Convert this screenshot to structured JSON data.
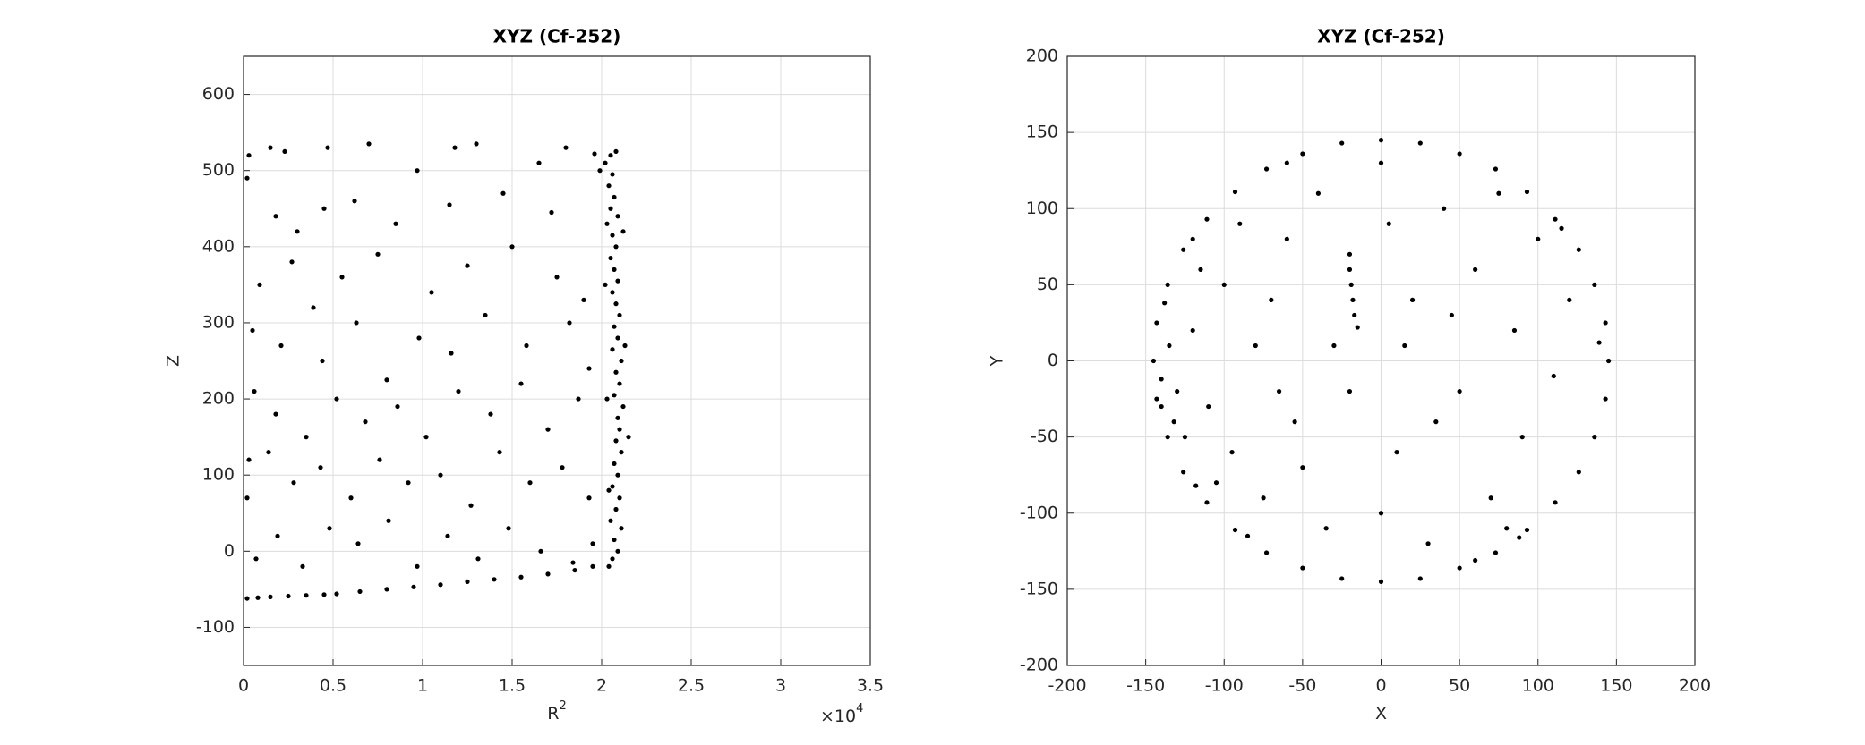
{
  "chart_data": [
    {
      "type": "scatter",
      "title": "XYZ (Cf-252)",
      "xlabel": "R",
      "xlabel_superscript": "2",
      "ylabel": "Z",
      "x_multiplier": "×10",
      "x_multiplier_exponent": "4",
      "color": "#000000",
      "grid": true,
      "xlim": [
        0,
        35000
      ],
      "ylim": [
        -150,
        650
      ],
      "xticks": [
        0,
        {
          "value": 5000,
          "label": "0.5"
        },
        {
          "value": 10000,
          "label": "1"
        },
        {
          "value": 15000,
          "label": "1.5"
        },
        {
          "value": 20000,
          "label": "2"
        },
        {
          "value": 25000,
          "label": "2.5"
        },
        {
          "value": 30000,
          "label": "3"
        },
        {
          "value": 35000,
          "label": "3.5"
        }
      ],
      "yticks": [
        -100,
        0,
        100,
        200,
        300,
        400,
        500,
        600
      ],
      "x": [
        20500,
        20800,
        19600,
        20200,
        20600,
        20400,
        20700,
        20500,
        20900,
        20300,
        20600,
        20800,
        20500,
        20700,
        20900,
        20600,
        20800,
        21000,
        20700,
        20900,
        20600,
        21100,
        20800,
        21000,
        20700,
        21200,
        20900,
        21000,
        20800,
        21100,
        20700,
        20900,
        20600,
        21000,
        20800,
        20500,
        21100,
        20700,
        20900,
        20600,
        20400,
        21500,
        21300,
        19900,
        20200,
        20300,
        20400,
        21200,
        200,
        800,
        1500,
        2500,
        3500,
        4500,
        5200,
        6500,
        8000,
        9500,
        11000,
        12500,
        14000,
        15500,
        17000,
        18500,
        19500,
        300,
        200,
        1500,
        2300,
        4700,
        7000,
        9700,
        11800,
        13000,
        16500,
        18000,
        1800,
        3000,
        4500,
        6200,
        8500,
        11500,
        14500,
        17200,
        900,
        2700,
        3900,
        5500,
        7500,
        10500,
        12500,
        15000,
        17500,
        19000,
        500,
        2100,
        4400,
        6300,
        8000,
        9800,
        11600,
        13500,
        15800,
        18200,
        19300,
        600,
        1800,
        3500,
        5200,
        6800,
        8600,
        10200,
        12000,
        13800,
        15500,
        17000,
        18700,
        300,
        1400,
        2800,
        4300,
        6000,
        7600,
        9200,
        11000,
        12700,
        14300,
        16000,
        17800,
        19300,
        200,
        700,
        1900,
        3300,
        4800,
        6400,
        8100,
        9700,
        11400,
        13100,
        14800,
        16600,
        18400,
        19500
      ],
      "values": [
        520,
        525,
        522,
        510,
        495,
        480,
        465,
        450,
        440,
        430,
        415,
        400,
        385,
        370,
        355,
        340,
        325,
        310,
        295,
        280,
        265,
        250,
        235,
        220,
        205,
        190,
        175,
        160,
        145,
        130,
        115,
        100,
        85,
        70,
        55,
        40,
        30,
        15,
        0,
        -10,
        -20,
        150,
        270,
        500,
        350,
        200,
        80,
        420,
        -62,
        -61,
        -60,
        -59,
        -58,
        -57,
        -56,
        -53,
        -50,
        -47,
        -44,
        -40,
        -37,
        -34,
        -30,
        -25,
        -20,
        520,
        490,
        530,
        525,
        530,
        535,
        500,
        530,
        535,
        510,
        530,
        440,
        420,
        450,
        460,
        430,
        455,
        470,
        445,
        350,
        380,
        320,
        360,
        390,
        340,
        375,
        400,
        360,
        330,
        290,
        270,
        250,
        300,
        225,
        280,
        260,
        310,
        270,
        300,
        240,
        210,
        180,
        150,
        200,
        170,
        190,
        150,
        210,
        180,
        220,
        160,
        200,
        120,
        130,
        90,
        110,
        70,
        120,
        90,
        100,
        60,
        130,
        90,
        110,
        70,
        70,
        -10,
        20,
        -20,
        30,
        10,
        40,
        -20,
        20,
        -10,
        30,
        0,
        -15,
        10
      ]
    },
    {
      "type": "scatter",
      "title": "XYZ (Cf-252)",
      "xlabel": "X",
      "ylabel": "Y",
      "color": "#000000",
      "grid": true,
      "xlim": [
        -200,
        200
      ],
      "ylim": [
        -200,
        200
      ],
      "xticks": [
        -200,
        -150,
        -100,
        -50,
        0,
        50,
        100,
        150,
        200
      ],
      "yticks": [
        -200,
        -150,
        -100,
        -50,
        0,
        50,
        100,
        150,
        200
      ],
      "x": [
        145,
        143,
        136,
        126,
        111,
        93,
        73,
        50,
        25,
        0,
        -25,
        -50,
        -73,
        -93,
        -111,
        -126,
        -136,
        -143,
        -145,
        -143,
        -136,
        -126,
        -111,
        -93,
        -73,
        -50,
        -25,
        0,
        25,
        50,
        73,
        93,
        111,
        126,
        136,
        143,
        139,
        -140,
        -138,
        -132,
        -118,
        -120,
        -85,
        88,
        115,
        -60,
        60,
        -20,
        -20,
        -19,
        -18,
        -17,
        -15,
        -120,
        -110,
        -100,
        -95,
        -80,
        -75,
        -60,
        -55,
        -40,
        -35,
        -20,
        0,
        5,
        10,
        20,
        30,
        40,
        50,
        60,
        70,
        85,
        90,
        100,
        110,
        -130,
        -125,
        -115,
        -105,
        -90,
        -70,
        -65,
        -50,
        -30,
        0,
        15,
        35,
        45,
        75,
        80,
        120,
        -140,
        -135
      ],
      "values": [
        0,
        25,
        50,
        73,
        93,
        111,
        126,
        136,
        143,
        145,
        143,
        136,
        126,
        111,
        93,
        73,
        50,
        25,
        0,
        -25,
        -50,
        -73,
        -93,
        -111,
        -126,
        -136,
        -143,
        -145,
        -143,
        -136,
        -126,
        -111,
        -93,
        -73,
        -50,
        -25,
        12,
        -12,
        38,
        -40,
        -82,
        80,
        -115,
        -116,
        87,
        130,
        -131,
        70,
        60,
        50,
        40,
        30,
        22,
        20,
        -30,
        50,
        -60,
        10,
        -90,
        80,
        -40,
        110,
        -110,
        -20,
        130,
        90,
        -60,
        40,
        -120,
        100,
        -20,
        60,
        -90,
        20,
        -50,
        80,
        -10,
        -20,
        -50,
        60,
        -80,
        90,
        40,
        -20,
        -70,
        10,
        -100,
        10,
        -40,
        30,
        110,
        -110,
        40,
        -30,
        10
      ]
    }
  ]
}
